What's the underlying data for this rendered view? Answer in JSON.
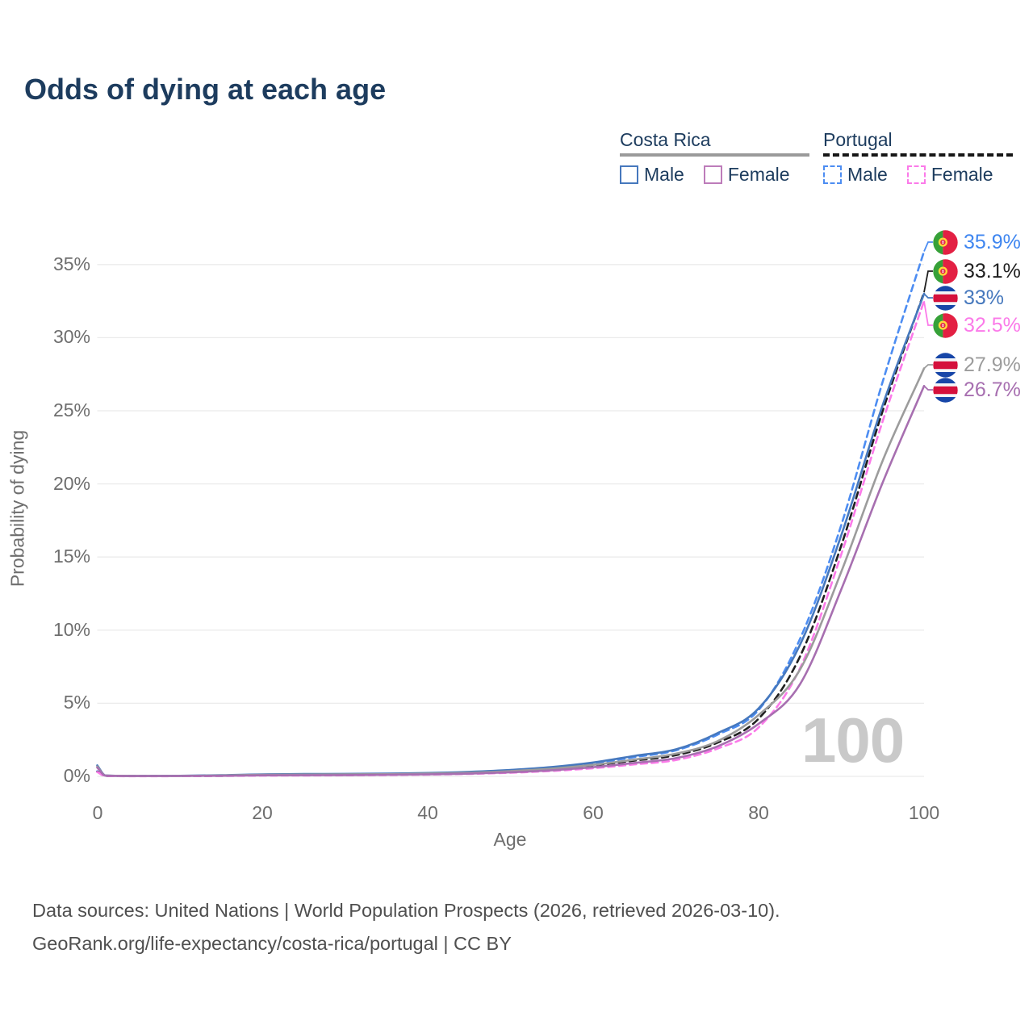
{
  "title": "Odds of dying at each age",
  "watermark": "100",
  "legend": {
    "groups": [
      {
        "label": "Costa Rica",
        "line_style": "solid",
        "underline_color": "#9a9a9a",
        "items": [
          {
            "label": "Male",
            "color": "#4678bd"
          },
          {
            "label": "Female",
            "color": "#bd7cba"
          }
        ]
      },
      {
        "label": "Portugal",
        "line_style": "dashed",
        "underline_color": "#161616",
        "items": [
          {
            "label": "Male",
            "color": "#4d8df2"
          },
          {
            "label": "Female",
            "color": "#fb7ae9"
          }
        ]
      }
    ]
  },
  "footer": {
    "line1": "Data sources: United Nations | World Population Prospects (2026, retrieved 2026-03-10).",
    "line2": "GeoRank.org/life-expectancy/costa-rica/portugal | CC BY"
  },
  "chart_data": {
    "type": "line",
    "title": "Odds of dying at each age",
    "xlabel": "Age",
    "ylabel": "Probability of dying",
    "xlim": [
      0,
      100
    ],
    "ylim": [
      0,
      36.5
    ],
    "x_ticks": [
      0,
      20,
      40,
      60,
      80,
      100
    ],
    "y_ticks": [
      0,
      5,
      10,
      15,
      20,
      25,
      30,
      35
    ],
    "y_tick_suffix": "%",
    "grid": true,
    "legend_position": "top-right",
    "age_annotation": "100",
    "x": [
      0,
      1,
      5,
      10,
      15,
      20,
      25,
      30,
      35,
      40,
      45,
      50,
      55,
      60,
      65,
      70,
      75,
      80,
      85,
      90,
      95,
      100
    ],
    "series": [
      {
        "name": "Portugal Male",
        "country": "portugal",
        "sex": "male",
        "color": "#4d8df2",
        "label_color": "#3f86f0",
        "dash": true,
        "end_label": "35.9%",
        "end_value": 35.9,
        "values": [
          0.35,
          0.03,
          0.02,
          0.02,
          0.05,
          0.1,
          0.12,
          0.13,
          0.15,
          0.2,
          0.28,
          0.42,
          0.62,
          0.9,
          1.32,
          1.78,
          2.85,
          4.55,
          9.4,
          17.2,
          27.0,
          35.9
        ]
      },
      {
        "name": "Portugal Both Sexes",
        "country": "portugal",
        "sex": "all",
        "color": "#1f1f1f",
        "label_color": "#1f1f1f",
        "dash": true,
        "end_label": "33.1%",
        "end_value": 33.1,
        "values": [
          0.32,
          0.03,
          0.015,
          0.02,
          0.04,
          0.07,
          0.08,
          0.1,
          0.12,
          0.16,
          0.23,
          0.34,
          0.5,
          0.76,
          1.08,
          1.45,
          2.3,
          3.95,
          8.2,
          15.8,
          25.0,
          33.1
        ]
      },
      {
        "name": "Costa Rica Male",
        "country": "costa-rica",
        "sex": "male",
        "color": "#4678bd",
        "label_color": "#4678bd",
        "dash": false,
        "end_label": "33%",
        "end_value": 33,
        "values": [
          0.75,
          0.06,
          0.03,
          0.04,
          0.08,
          0.14,
          0.16,
          0.17,
          0.19,
          0.23,
          0.31,
          0.44,
          0.64,
          0.95,
          1.4,
          1.85,
          2.95,
          4.65,
          9.0,
          16.5,
          25.4,
          33.0
        ]
      },
      {
        "name": "Portugal Female",
        "country": "portugal",
        "sex": "female",
        "color": "#fb7ae9",
        "label_color": "#fb7ae9",
        "dash": true,
        "end_label": "32.5%",
        "end_value": 32.5,
        "values": [
          0.3,
          0.025,
          0.012,
          0.015,
          0.03,
          0.05,
          0.06,
          0.07,
          0.09,
          0.12,
          0.17,
          0.25,
          0.37,
          0.56,
          0.82,
          1.12,
          1.9,
          3.35,
          7.4,
          15.2,
          24.3,
          32.5
        ]
      },
      {
        "name": "Costa Rica Both Sexes",
        "country": "costa-rica",
        "sex": "all",
        "color": "#9c9c9c",
        "label_color": "#9c9c9c",
        "dash": false,
        "end_label": "27.9%",
        "end_value": 27.9,
        "values": [
          0.68,
          0.05,
          0.025,
          0.03,
          0.06,
          0.11,
          0.12,
          0.13,
          0.15,
          0.19,
          0.25,
          0.36,
          0.53,
          0.79,
          1.15,
          1.55,
          2.4,
          4.2,
          7.3,
          14.0,
          21.6,
          27.9
        ]
      },
      {
        "name": "Costa Rica Female",
        "country": "costa-rica",
        "sex": "female",
        "color": "#a76fb0",
        "label_color": "#a76fb0",
        "dash": false,
        "end_label": "26.7%",
        "end_value": 26.7,
        "values": [
          0.6,
          0.05,
          0.02,
          0.025,
          0.04,
          0.07,
          0.08,
          0.09,
          0.11,
          0.14,
          0.19,
          0.28,
          0.42,
          0.63,
          0.92,
          1.25,
          2.05,
          3.6,
          6.3,
          12.8,
          20.1,
          26.7
        ]
      }
    ]
  }
}
